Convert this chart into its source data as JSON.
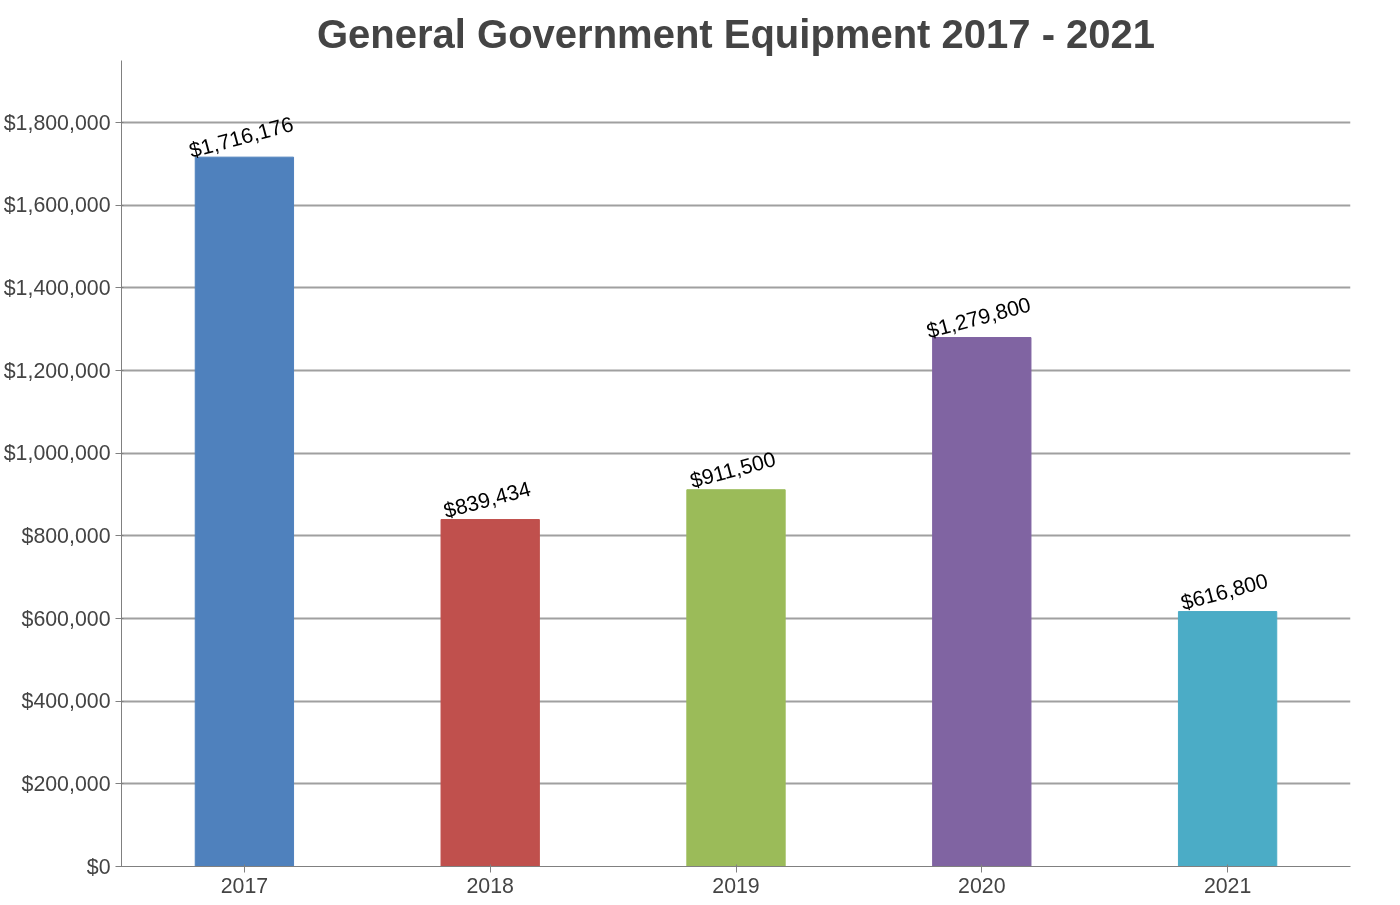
{
  "chart_data": {
    "type": "bar",
    "title": "General Government Equipment 2017 - 2021",
    "categories": [
      "2017",
      "2018",
      "2019",
      "2020",
      "2021"
    ],
    "values": [
      1716176,
      839434,
      911500,
      1279800,
      616800
    ],
    "colors": [
      "#4f81bd",
      "#c0504d",
      "#9bbb59",
      "#8064a2",
      "#4bacc6"
    ],
    "value_labels": [
      "$1,716,176",
      "$839,434",
      "$911,500",
      "$1,279,800",
      "$616,800"
    ],
    "ylim": [
      0,
      1950000
    ],
    "yticks": [
      {
        "value": 0,
        "label": "$0"
      },
      {
        "value": 200000,
        "label": "$200,000"
      },
      {
        "value": 400000,
        "label": "$400,000"
      },
      {
        "value": 600000,
        "label": "$600,000"
      },
      {
        "value": 800000,
        "label": "$800,000"
      },
      {
        "value": 1000000,
        "label": "$1,000,000"
      },
      {
        "value": 1200000,
        "label": "$1,200,000"
      },
      {
        "value": 1400000,
        "label": "$1,400,000"
      },
      {
        "value": 1600000,
        "label": "$1,600,000"
      },
      {
        "value": 1800000,
        "label": "$1,800,000"
      }
    ],
    "grid": "y"
  }
}
